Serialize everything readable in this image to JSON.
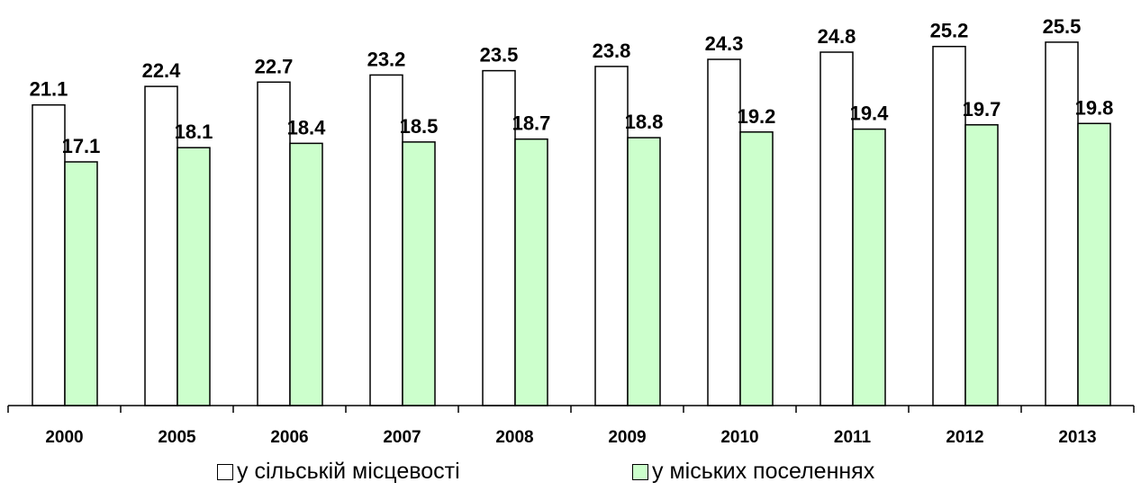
{
  "chart_data": {
    "type": "bar",
    "title": "",
    "xlabel": "",
    "ylabel": "",
    "categories": [
      "2000",
      "2005",
      "2006",
      "2007",
      "2008",
      "2009",
      "2010",
      "2011",
      "2012",
      "2013"
    ],
    "series": [
      {
        "name": "у сільській місцевості",
        "values": [
          21.1,
          22.4,
          22.7,
          23.2,
          23.5,
          23.8,
          24.3,
          24.8,
          25.2,
          25.5
        ],
        "color": "#ffffff"
      },
      {
        "name": "у міських поселеннях",
        "values": [
          17.1,
          18.1,
          18.4,
          18.5,
          18.7,
          18.8,
          19.2,
          19.4,
          19.7,
          19.8
        ],
        "color": "#ccffcc"
      }
    ],
    "value_labels": {
      "s0": [
        "21.1",
        "22.4",
        "22.7",
        "23.2",
        "23.5",
        "23.8",
        "24.3",
        "24.8",
        "25.2",
        "25.5"
      ],
      "s1": [
        "17.1",
        "18.1",
        "18.4",
        "18.5",
        "18.7",
        "18.8",
        "19.2",
        "19.4",
        "19.7",
        "19.8"
      ]
    },
    "ylim": [
      0,
      27.2
    ],
    "grid": false,
    "legend_position": "bottom",
    "border_color": "#000000"
  }
}
